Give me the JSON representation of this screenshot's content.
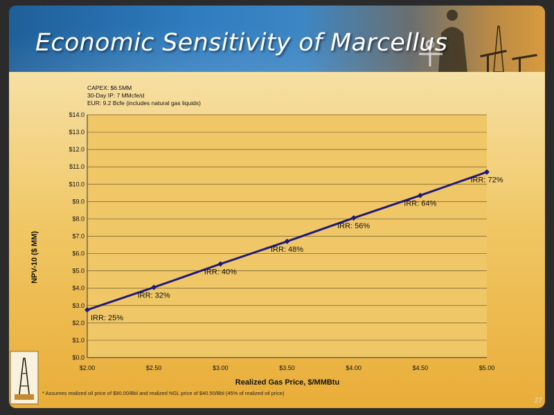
{
  "header": {
    "title": "Economic Sensitivity of Marcellus"
  },
  "notes": [
    "CAPEX: $6.5MM",
    "30-Day IP: 7 MMcfe/d",
    "EUR: 9.2 Bcfe (includes natural gas liquids)"
  ],
  "footnote": "* Assumes realized oil price of $90.00/Bbl and realized NGL price of $40.50/Bbl (45% of realized oil price)",
  "page_number": "27",
  "colors": {
    "line": "#1f1a7a",
    "plot_background": "#f0c767"
  },
  "icons": {
    "logo": "oil-derrick-logo-icon",
    "banner_art": "oil-field-silhouette-icon"
  },
  "chart_data": {
    "type": "line",
    "xlabel": "Realized Gas Price, $/MMBtu",
    "ylabel": "NPV-10 ($ MM)",
    "x": [
      2.0,
      2.5,
      3.0,
      3.5,
      4.0,
      4.5,
      5.0
    ],
    "x_tick_labels": [
      "$2.00",
      "$2.50",
      "$3.00",
      "$3.50",
      "$4.00",
      "$4.50",
      "$5.00"
    ],
    "ylim": [
      0,
      14
    ],
    "y_tick_labels": [
      "$0.0",
      "$1.0",
      "$2.0",
      "$3.0",
      "$4.0",
      "$5.0",
      "$6.0",
      "$7.0",
      "$8.0",
      "$9.0",
      "$10.0",
      "$11.0",
      "$12.0",
      "$13.0",
      "$14.0"
    ],
    "grid": true,
    "series": [
      {
        "values": [
          2.75,
          4.05,
          5.4,
          6.7,
          8.05,
          9.35,
          10.7
        ],
        "data_labels": [
          "IRR: 25%",
          "IRR: 32%",
          "IRR: 40%",
          "IRR: 48%",
          "IRR: 56%",
          "IRR: 64%",
          "IRR: 72%"
        ]
      }
    ]
  }
}
